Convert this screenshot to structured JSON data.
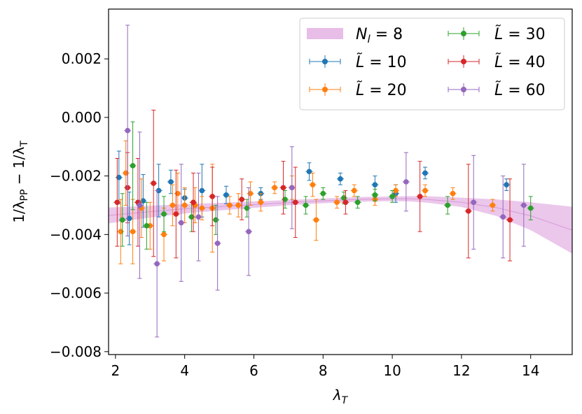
{
  "chart_data": {
    "type": "scatter",
    "title": "",
    "xlabel": "λ",
    "xlabel_sub": "T",
    "ylabel_parts": [
      "1/λ",
      "PP",
      " − 1/λ",
      "T"
    ],
    "xlim": [
      1.8,
      15.2
    ],
    "ylim": [
      -0.0081,
      0.0037
    ],
    "xticks": [
      2,
      4,
      6,
      8,
      10,
      12,
      14
    ],
    "xtick_labels": [
      "2",
      "4",
      "6",
      "8",
      "10",
      "12",
      "14"
    ],
    "yticks": [
      0.002,
      0.0,
      -0.002,
      -0.004,
      -0.006,
      -0.008
    ],
    "ytick_labels": [
      "0.002",
      "0.000",
      "−0.002",
      "−0.004",
      "−0.006",
      "−0.008"
    ],
    "band": {
      "name": "N_l = 8",
      "label_main": "N",
      "label_sub": "l",
      "label_rest": " = 8",
      "color": "#e8bde8",
      "line_color": "#d9a0d9",
      "x": [
        1.8,
        3,
        4,
        5,
        6,
        7,
        8,
        9,
        10,
        10.5,
        11,
        12,
        13,
        14,
        15.2
      ],
      "center": [
        -0.00335,
        -0.00322,
        -0.00312,
        -0.00305,
        -0.00298,
        -0.00291,
        -0.00285,
        -0.0028,
        -0.00278,
        -0.00278,
        -0.0028,
        -0.0029,
        -0.00308,
        -0.00336,
        -0.00385
      ],
      "lower": [
        -0.00362,
        -0.00342,
        -0.00328,
        -0.00318,
        -0.00309,
        -0.003,
        -0.00293,
        -0.00288,
        -0.00286,
        -0.00287,
        -0.00291,
        -0.00306,
        -0.00336,
        -0.00385,
        -0.00465
      ],
      "upper": [
        -0.00308,
        -0.00302,
        -0.00296,
        -0.00292,
        -0.00287,
        -0.00282,
        -0.00277,
        -0.00272,
        -0.0027,
        -0.00269,
        -0.00269,
        -0.00274,
        -0.0028,
        -0.0029,
        -0.00305
      ]
    },
    "series": [
      {
        "name": "L̃ = 10",
        "label_pre": "L̃",
        "label_rest": " = 10",
        "color": "#1f77b4",
        "points": [
          [
            2.1,
            -0.00205,
            0.0009
          ],
          [
            2.4,
            -0.00345,
            0.0009
          ],
          [
            2.8,
            -0.00285,
            0.0009
          ],
          [
            3.25,
            -0.0025,
            0.0009
          ],
          [
            3.6,
            -0.0022,
            0.0004
          ],
          [
            4.0,
            -0.00275,
            0.0003
          ],
          [
            4.5,
            -0.0025,
            0.0009
          ],
          [
            5.2,
            -0.00265,
            0.0003
          ],
          [
            6.2,
            -0.0026,
            0.0002
          ],
          [
            7.6,
            -0.00185,
            0.0003
          ],
          [
            8.5,
            -0.0021,
            0.0002
          ],
          [
            9.5,
            -0.0023,
            0.0003
          ],
          [
            10.1,
            -0.0026,
            0.0003
          ],
          [
            10.95,
            -0.0019,
            0.0002
          ],
          [
            13.3,
            -0.0023,
            0.0002
          ]
        ]
      },
      {
        "name": "L̃ = 20",
        "label_pre": "L̃",
        "label_rest": " = 20",
        "color": "#ff7f0e",
        "points": [
          [
            2.15,
            -0.0039,
            0.0011
          ],
          [
            2.3,
            -0.0019,
            0.0011
          ],
          [
            2.5,
            -0.0039,
            0.0011
          ],
          [
            2.75,
            -0.0031,
            0.001
          ],
          [
            3.0,
            -0.0037,
            0.0008
          ],
          [
            3.4,
            -0.004,
            0.0009
          ],
          [
            3.65,
            -0.003,
            0.0007
          ],
          [
            3.8,
            -0.0026,
            0.0007
          ],
          [
            4.0,
            -0.003,
            0.0006
          ],
          [
            4.3,
            -0.003,
            0.0006
          ],
          [
            4.5,
            -0.0031,
            0.0004
          ],
          [
            4.8,
            -0.0031,
            0.0015
          ],
          [
            5.3,
            -0.003,
            0.0003
          ],
          [
            5.55,
            -0.003,
            0.0004
          ],
          [
            5.9,
            -0.0026,
            0.0004
          ],
          [
            6.2,
            -0.0029,
            0.0003
          ],
          [
            6.6,
            -0.0024,
            0.0002
          ],
          [
            7.1,
            -0.0024,
            0.0004
          ],
          [
            7.7,
            -0.0023,
            0.0004
          ],
          [
            7.8,
            -0.0035,
            0.0007
          ],
          [
            8.4,
            -0.0029,
            0.0002
          ],
          [
            8.9,
            -0.0025,
            0.0002
          ],
          [
            9.5,
            -0.0028,
            0.0002
          ],
          [
            10.1,
            -0.0025,
            0.0002
          ],
          [
            10.95,
            -0.0025,
            0.0002
          ],
          [
            11.75,
            -0.0026,
            0.0002
          ],
          [
            12.9,
            -0.003,
            0.0002
          ]
        ]
      },
      {
        "name": "L̃ = 30",
        "label_pre": "L̃",
        "label_rest": " = 30",
        "color": "#2ca02c",
        "points": [
          [
            2.2,
            -0.0035,
            0.0009
          ],
          [
            2.5,
            -0.00165,
            0.0015
          ],
          [
            2.9,
            -0.0037,
            0.0008
          ],
          [
            3.4,
            -0.0033,
            0.0006
          ],
          [
            4.2,
            -0.0034,
            0.0005
          ],
          [
            4.9,
            -0.0035,
            0.0005
          ],
          [
            5.8,
            -0.0031,
            0.0003
          ],
          [
            6.9,
            -0.0028,
            0.0003
          ],
          [
            7.5,
            -0.003,
            0.0003
          ],
          [
            8.0,
            -0.0026,
            0.0002
          ],
          [
            8.6,
            -0.00275,
            0.0002
          ],
          [
            9.0,
            -0.0029,
            0.0002
          ],
          [
            9.5,
            -0.00265,
            0.0002
          ],
          [
            10.0,
            -0.0027,
            0.0002
          ],
          [
            11.6,
            -0.003,
            0.0003
          ],
          [
            14.0,
            -0.0031,
            0.0004
          ]
        ]
      },
      {
        "name": "L̃ = 40",
        "label_pre": "L̃",
        "label_rest": " = 40",
        "color": "#d62728",
        "points": [
          [
            2.05,
            -0.0029,
            0.0015
          ],
          [
            2.35,
            -0.0024,
            0.0012
          ],
          [
            2.65,
            -0.0029,
            0.0015
          ],
          [
            3.1,
            -0.00225,
            0.0025
          ],
          [
            3.75,
            -0.0033,
            0.0015
          ],
          [
            4.25,
            -0.0029,
            0.001
          ],
          [
            4.8,
            -0.0027,
            0.001
          ],
          [
            5.65,
            -0.0028,
            0.0007
          ],
          [
            6.85,
            -0.0024,
            0.0009
          ],
          [
            7.2,
            -0.0029,
            0.0012
          ],
          [
            8.65,
            -0.0029,
            0.0004
          ],
          [
            10.8,
            -0.0027,
            0.0012
          ],
          [
            12.2,
            -0.0032,
            0.0016
          ],
          [
            13.4,
            -0.0035,
            0.0014
          ]
        ]
      },
      {
        "name": "L̃ = 60",
        "label_pre": "L̃",
        "label_rest": " = 60",
        "color": "#9467bd",
        "points": [
          [
            2.35,
            -0.00045,
            0.0036
          ],
          [
            2.7,
            -0.003,
            0.0025
          ],
          [
            3.2,
            -0.005,
            0.0025
          ],
          [
            3.9,
            -0.0036,
            0.002
          ],
          [
            4.4,
            -0.0034,
            0.0015
          ],
          [
            4.95,
            -0.0043,
            0.0016
          ],
          [
            5.85,
            -0.0039,
            0.0015
          ],
          [
            7.1,
            -0.0024,
            0.0014
          ],
          [
            10.4,
            -0.0022,
            0.001
          ],
          [
            12.35,
            -0.0029,
            0.0016
          ],
          [
            13.2,
            -0.0034,
            0.0014
          ],
          [
            13.8,
            -0.003,
            0.0014
          ]
        ]
      }
    ]
  }
}
